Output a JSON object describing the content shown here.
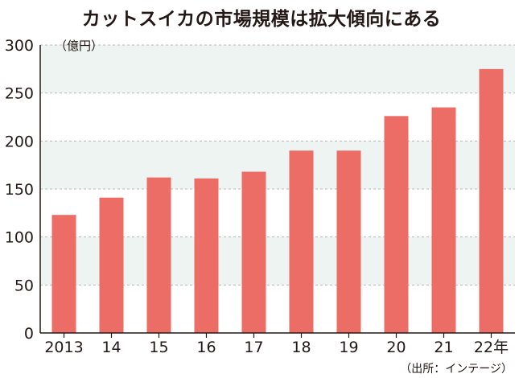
{
  "title": "カットスイカの市場規模は拡大傾向にある",
  "unit_label": "（億円）",
  "source_label": "（出所：インテージ）",
  "colors": {
    "bar": "#ec6c66",
    "band": "#eef4f1",
    "grid": "#b8b8b8",
    "axis": "#231815"
  },
  "chart_data": {
    "type": "bar",
    "title": "カットスイカの市場規模は拡大傾向にある",
    "ylabel": "（億円）",
    "xlabel": "",
    "categories": [
      "2013",
      "14",
      "15",
      "16",
      "17",
      "18",
      "19",
      "20",
      "21",
      "22年"
    ],
    "values": [
      123,
      141,
      162,
      161,
      168,
      190,
      190,
      226,
      235,
      275
    ],
    "ylim": [
      0,
      300
    ],
    "yticks": [
      "0",
      "50",
      "100",
      "150",
      "200",
      "250",
      "300"
    ],
    "grid": true,
    "source": "（出所：インテージ）"
  }
}
